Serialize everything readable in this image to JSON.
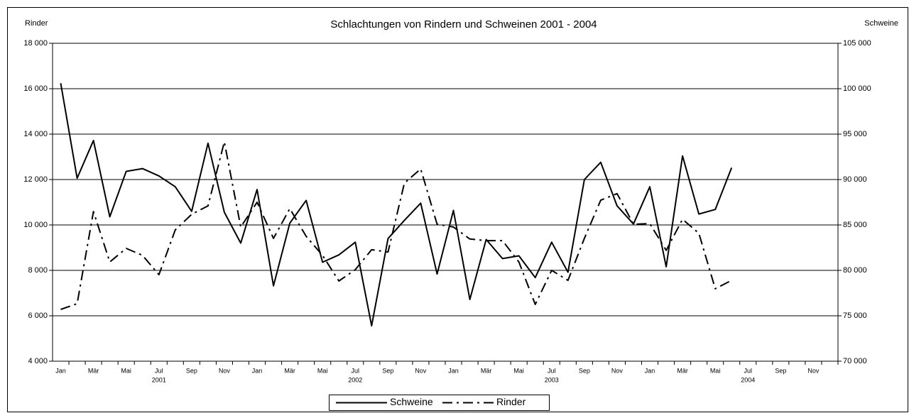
{
  "chart_data": {
    "type": "line",
    "title": "Schlachtungen von Rindern und Schweinen 2001 - 2004",
    "ylabel": "Rinder",
    "y2label": "Schweine",
    "categories": [
      "Jan",
      null,
      "Mär",
      null,
      "Mai",
      null,
      "Jul",
      null,
      "Sep",
      null,
      "Nov",
      null,
      "Jan",
      null,
      "Mär",
      null,
      "Mai",
      null,
      "Jul",
      null,
      "Sep",
      null,
      "Nov",
      null,
      "Jan",
      null,
      "Mär",
      null,
      "Mai",
      null,
      "Jul",
      null,
      "Sep",
      null,
      "Nov",
      null,
      "Jan",
      null,
      "Mär",
      null,
      "Mai",
      null,
      "Jul",
      null,
      "Sep",
      null,
      "Nov",
      null
    ],
    "groups": [
      "2001",
      "2002",
      "2003",
      "2004"
    ],
    "series": [
      {
        "name": "Schweine",
        "color": "#000000",
        "style": "solid",
        "axis": "y2",
        "values": [
          100600,
          90150,
          94300,
          85900,
          90900,
          91200,
          90400,
          89200,
          86500,
          94000,
          86400,
          83000,
          88900,
          78300,
          85200,
          87700,
          80900,
          81700,
          83100,
          73900,
          83500,
          85500,
          87400,
          79600,
          86600,
          76800,
          83400,
          81300,
          81600,
          79200,
          83100,
          79800,
          90000,
          91900,
          87100,
          85100,
          89200,
          80400,
          92600,
          86200,
          86700,
          91300,
          null,
          null,
          null,
          null,
          null,
          null
        ]
      },
      {
        "name": "Rinder",
        "color": "#000000",
        "style": "dashdot",
        "axis": "y",
        "values": [
          6280,
          6530,
          10590,
          8370,
          8970,
          8660,
          7810,
          9780,
          10470,
          10840,
          13660,
          9910,
          11000,
          9410,
          10720,
          9500,
          8660,
          7530,
          8030,
          8910,
          8810,
          11840,
          12470,
          10030,
          9910,
          9380,
          9310,
          9310,
          8370,
          6500,
          8000,
          7560,
          9410,
          11090,
          11380,
          10030,
          10060,
          8880,
          10250,
          9630,
          7190,
          7560,
          null,
          null,
          null,
          null,
          null,
          null
        ]
      }
    ],
    "ylim": [
      4000,
      18000
    ],
    "yticks": [
      {
        "value": 4000,
        "label": "4 000"
      },
      {
        "value": 6000,
        "label": "6 000"
      },
      {
        "value": 8000,
        "label": "8 000"
      },
      {
        "value": 10000,
        "label": "10 000"
      },
      {
        "value": 12000,
        "label": "12 000"
      },
      {
        "value": 14000,
        "label": "14 000"
      },
      {
        "value": 16000,
        "label": "16 000"
      },
      {
        "value": 18000,
        "label": "18 000"
      }
    ],
    "y2lim": [
      70000,
      105000
    ],
    "y2ticks": [
      {
        "value": 70000,
        "label": "70 000"
      },
      {
        "value": 75000,
        "label": "75 000"
      },
      {
        "value": 80000,
        "label": "80 000"
      },
      {
        "value": 85000,
        "label": "85 000"
      },
      {
        "value": 90000,
        "label": "90 000"
      },
      {
        "value": 95000,
        "label": "95 000"
      },
      {
        "value": 100000,
        "label": "100 000"
      },
      {
        "value": 105000,
        "label": "105 000"
      }
    ],
    "grid": true,
    "legend": "bottom"
  }
}
